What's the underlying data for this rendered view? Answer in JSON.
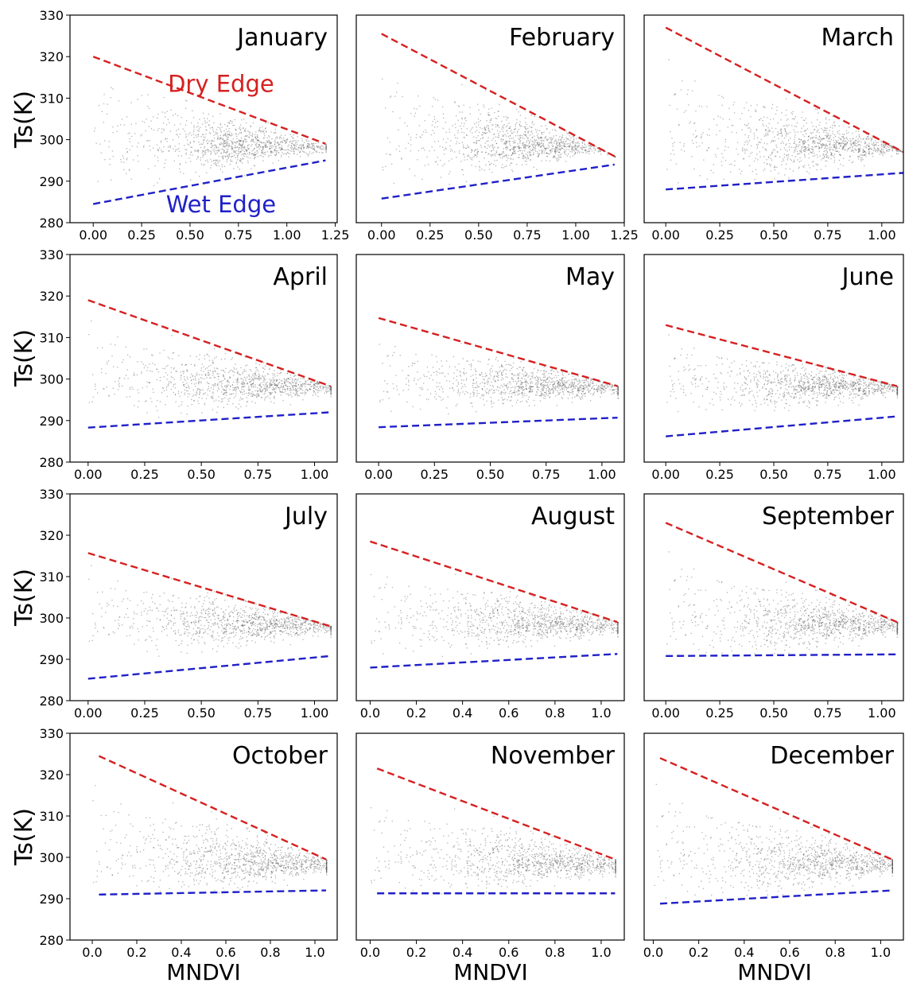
{
  "figure": {
    "ylabel": "Ts(K)",
    "xlabel": "MNDVI"
  },
  "colors": {
    "dry_edge": "#d62020",
    "wet_edge": "#2020c8",
    "scatter": "#555555"
  },
  "chart_data": [
    {
      "type": "scatter",
      "title": "January",
      "xticks": [
        "0.00",
        "0.25",
        "0.50",
        "0.75",
        "1.00",
        "1.25"
      ],
      "xlim": [
        -0.12,
        1.26
      ],
      "ylim": [
        280,
        330
      ],
      "yticks": [
        "280",
        "290",
        "300",
        "310",
        "320",
        "330"
      ],
      "series": [
        {
          "name": "Dry Edge",
          "x": [
            0.0,
            1.2
          ],
          "y": [
            320,
            299
          ]
        },
        {
          "name": "Wet Edge",
          "x": [
            0.0,
            1.2
          ],
          "y": [
            284.5,
            295
          ]
        }
      ],
      "annotations": [
        {
          "text": "Dry Edge",
          "at": [
            0.66,
            311.5
          ],
          "color": "dry_edge"
        },
        {
          "text": "Wet Edge",
          "at": [
            0.66,
            282.5
          ],
          "color": "wet_edge"
        }
      ]
    },
    {
      "type": "scatter",
      "title": "February",
      "xticks": [
        "0.00",
        "0.25",
        "0.50",
        "0.75",
        "1.00",
        "1.25"
      ],
      "xlim": [
        -0.13,
        1.25
      ],
      "ylim": [
        280,
        330
      ],
      "yticks": [],
      "series": [
        {
          "name": "Dry Edge",
          "x": [
            0.0,
            1.2
          ],
          "y": [
            325.5,
            296
          ]
        },
        {
          "name": "Wet Edge",
          "x": [
            0.0,
            1.2
          ],
          "y": [
            285.8,
            294
          ]
        }
      ]
    },
    {
      "type": "scatter",
      "title": "March",
      "xticks": [
        "0.00",
        "0.25",
        "0.50",
        "0.75",
        "1.00"
      ],
      "xlim": [
        -0.1,
        1.1
      ],
      "ylim": [
        280,
        330
      ],
      "yticks": [],
      "series": [
        {
          "name": "Dry Edge",
          "x": [
            0.0,
            1.1
          ],
          "y": [
            327,
            297
          ]
        },
        {
          "name": "Wet Edge",
          "x": [
            0.0,
            1.1
          ],
          "y": [
            288,
            292
          ]
        }
      ]
    },
    {
      "type": "scatter",
      "title": "April",
      "xticks": [
        "0.00",
        "0.25",
        "0.50",
        "0.75",
        "1.00"
      ],
      "xlim": [
        -0.08,
        1.1
      ],
      "ylim": [
        280,
        330
      ],
      "yticks": [
        "280",
        "290",
        "300",
        "310",
        "320",
        "330"
      ],
      "series": [
        {
          "name": "Dry Edge",
          "x": [
            0.0,
            1.07
          ],
          "y": [
            319,
            298.3
          ]
        },
        {
          "name": "Wet Edge",
          "x": [
            0.0,
            1.07
          ],
          "y": [
            288.3,
            292
          ]
        }
      ]
    },
    {
      "type": "scatter",
      "title": "May",
      "xticks": [
        "0.00",
        "0.25",
        "0.50",
        "0.75",
        "1.00"
      ],
      "xlim": [
        -0.1,
        1.1
      ],
      "ylim": [
        280,
        330
      ],
      "yticks": [],
      "series": [
        {
          "name": "Dry Edge",
          "x": [
            0.0,
            1.07
          ],
          "y": [
            314.7,
            298.3
          ]
        },
        {
          "name": "Wet Edge",
          "x": [
            0.0,
            1.07
          ],
          "y": [
            288.4,
            290.7
          ]
        }
      ]
    },
    {
      "type": "scatter",
      "title": "June",
      "xticks": [
        "0.00",
        "0.25",
        "0.50",
        "0.75",
        "1.00"
      ],
      "xlim": [
        -0.1,
        1.1
      ],
      "ylim": [
        280,
        330
      ],
      "yticks": [],
      "series": [
        {
          "name": "Dry Edge",
          "x": [
            0.0,
            1.07
          ],
          "y": [
            313,
            298.3
          ]
        },
        {
          "name": "Wet Edge",
          "x": [
            0.0,
            1.07
          ],
          "y": [
            286.2,
            291
          ]
        }
      ]
    },
    {
      "type": "scatter",
      "title": "July",
      "xticks": [
        "0.00",
        "0.25",
        "0.50",
        "0.75",
        "1.00"
      ],
      "xlim": [
        -0.08,
        1.1
      ],
      "ylim": [
        280,
        330
      ],
      "yticks": [
        "280",
        "290",
        "300",
        "310",
        "320",
        "330"
      ],
      "series": [
        {
          "name": "Dry Edge",
          "x": [
            0.0,
            1.07
          ],
          "y": [
            315.7,
            298
          ]
        },
        {
          "name": "Wet Edge",
          "x": [
            0.0,
            1.07
          ],
          "y": [
            285.3,
            290.8
          ]
        }
      ]
    },
    {
      "type": "scatter",
      "title": "August",
      "xticks": [
        "0.0",
        "0.2",
        "0.4",
        "0.6",
        "0.8",
        "1.0"
      ],
      "xlim": [
        -0.06,
        1.1
      ],
      "ylim": [
        280,
        330
      ],
      "yticks": [],
      "series": [
        {
          "name": "Dry Edge",
          "x": [
            0.0,
            1.07
          ],
          "y": [
            318.5,
            299
          ]
        },
        {
          "name": "Wet Edge",
          "x": [
            0.0,
            1.07
          ],
          "y": [
            288,
            291.3
          ]
        }
      ]
    },
    {
      "type": "scatter",
      "title": "September",
      "xticks": [
        "0.00",
        "0.25",
        "0.50",
        "0.75",
        "1.00"
      ],
      "xlim": [
        -0.1,
        1.1
      ],
      "ylim": [
        280,
        330
      ],
      "yticks": [],
      "series": [
        {
          "name": "Dry Edge",
          "x": [
            0.0,
            1.07
          ],
          "y": [
            323,
            299
          ]
        },
        {
          "name": "Wet Edge",
          "x": [
            0.0,
            1.07
          ],
          "y": [
            290.8,
            291.2
          ]
        }
      ]
    },
    {
      "type": "scatter",
      "title": "October",
      "xticks": [
        "0.0",
        "0.2",
        "0.4",
        "0.6",
        "0.8",
        "1.0"
      ],
      "xlim": [
        -0.1,
        1.1
      ],
      "ylim": [
        280,
        330
      ],
      "yticks": [
        "280",
        "290",
        "300",
        "310",
        "320",
        "330"
      ],
      "series": [
        {
          "name": "Dry Edge",
          "x": [
            0.03,
            1.05
          ],
          "y": [
            324.5,
            299.5
          ]
        },
        {
          "name": "Wet Edge",
          "x": [
            0.03,
            1.05
          ],
          "y": [
            291,
            292
          ]
        }
      ]
    },
    {
      "type": "scatter",
      "title": "November",
      "xticks": [
        "0.0",
        "0.2",
        "0.4",
        "0.6",
        "0.8",
        "1.0"
      ],
      "xlim": [
        -0.06,
        1.1
      ],
      "ylim": [
        280,
        330
      ],
      "yticks": [],
      "series": [
        {
          "name": "Dry Edge",
          "x": [
            0.03,
            1.06
          ],
          "y": [
            321.5,
            299.5
          ]
        },
        {
          "name": "Wet Edge",
          "x": [
            0.03,
            1.06
          ],
          "y": [
            291.3,
            291.3
          ]
        }
      ]
    },
    {
      "type": "scatter",
      "title": "December",
      "xticks": [
        "0.0",
        "0.2",
        "0.4",
        "0.6",
        "0.8",
        "1.0"
      ],
      "xlim": [
        -0.04,
        1.1
      ],
      "ylim": [
        280,
        330
      ],
      "yticks": [],
      "series": [
        {
          "name": "Dry Edge",
          "x": [
            0.03,
            1.05
          ],
          "y": [
            324,
            299.5
          ]
        },
        {
          "name": "Wet Edge",
          "x": [
            0.03,
            1.05
          ],
          "y": [
            288.8,
            292
          ]
        }
      ]
    }
  ]
}
